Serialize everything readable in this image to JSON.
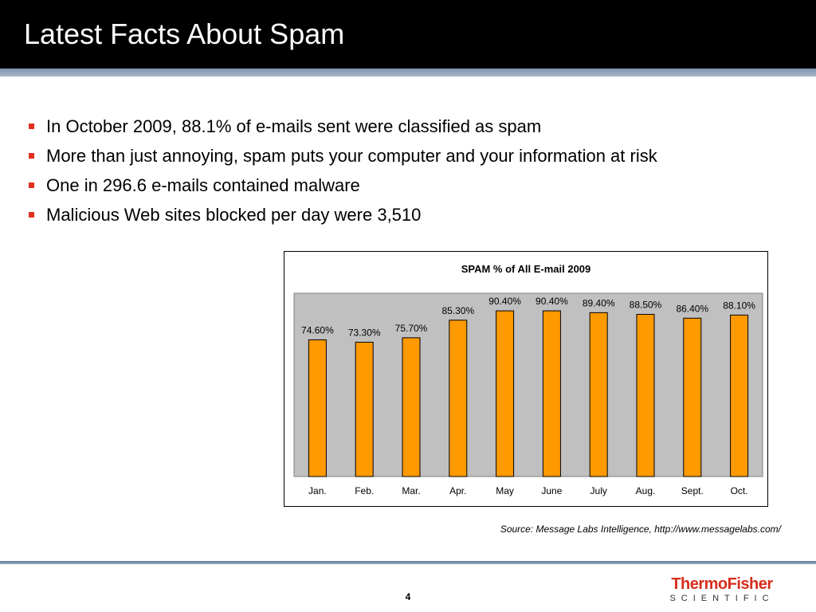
{
  "slide": {
    "title": "Latest Facts About Spam",
    "bullets": [
      "In October 2009, 88.1% of e-mails sent were classified as spam",
      "More than just annoying, spam puts your computer and your information at risk",
      "One in 296.6 e-mails contained malware",
      "Malicious Web sites blocked per day were 3,510"
    ],
    "source": "Source: Message Labs Intelligence, http://www.messagelabs.com/",
    "page_number": "4",
    "logo": {
      "word": "ThermoFisher",
      "sub": "SCIENTIFIC"
    }
  },
  "colors": {
    "bar_fill": "#ff9900",
    "bar_stroke": "#000000",
    "plot_area": "#c0c0c0",
    "bullet": "#e0301e"
  },
  "chart_data": {
    "type": "bar",
    "title": "SPAM % of All E-mail 2009",
    "categories": [
      "Jan.",
      "Feb.",
      "Mar.",
      "Apr.",
      "May",
      "June",
      "July",
      "Aug.",
      "Sept.",
      "Oct."
    ],
    "values": [
      74.6,
      73.3,
      75.7,
      85.3,
      90.4,
      90.4,
      89.4,
      88.5,
      86.4,
      88.1
    ],
    "data_labels": [
      "74.60%",
      "73.30%",
      "75.70%",
      "85.30%",
      "90.40%",
      "90.40%",
      "89.40%",
      "88.50%",
      "86.40%",
      "88.10%"
    ],
    "xlabel": "",
    "ylabel": "",
    "ylim": [
      0,
      100
    ],
    "grid": false,
    "legend": "none"
  }
}
